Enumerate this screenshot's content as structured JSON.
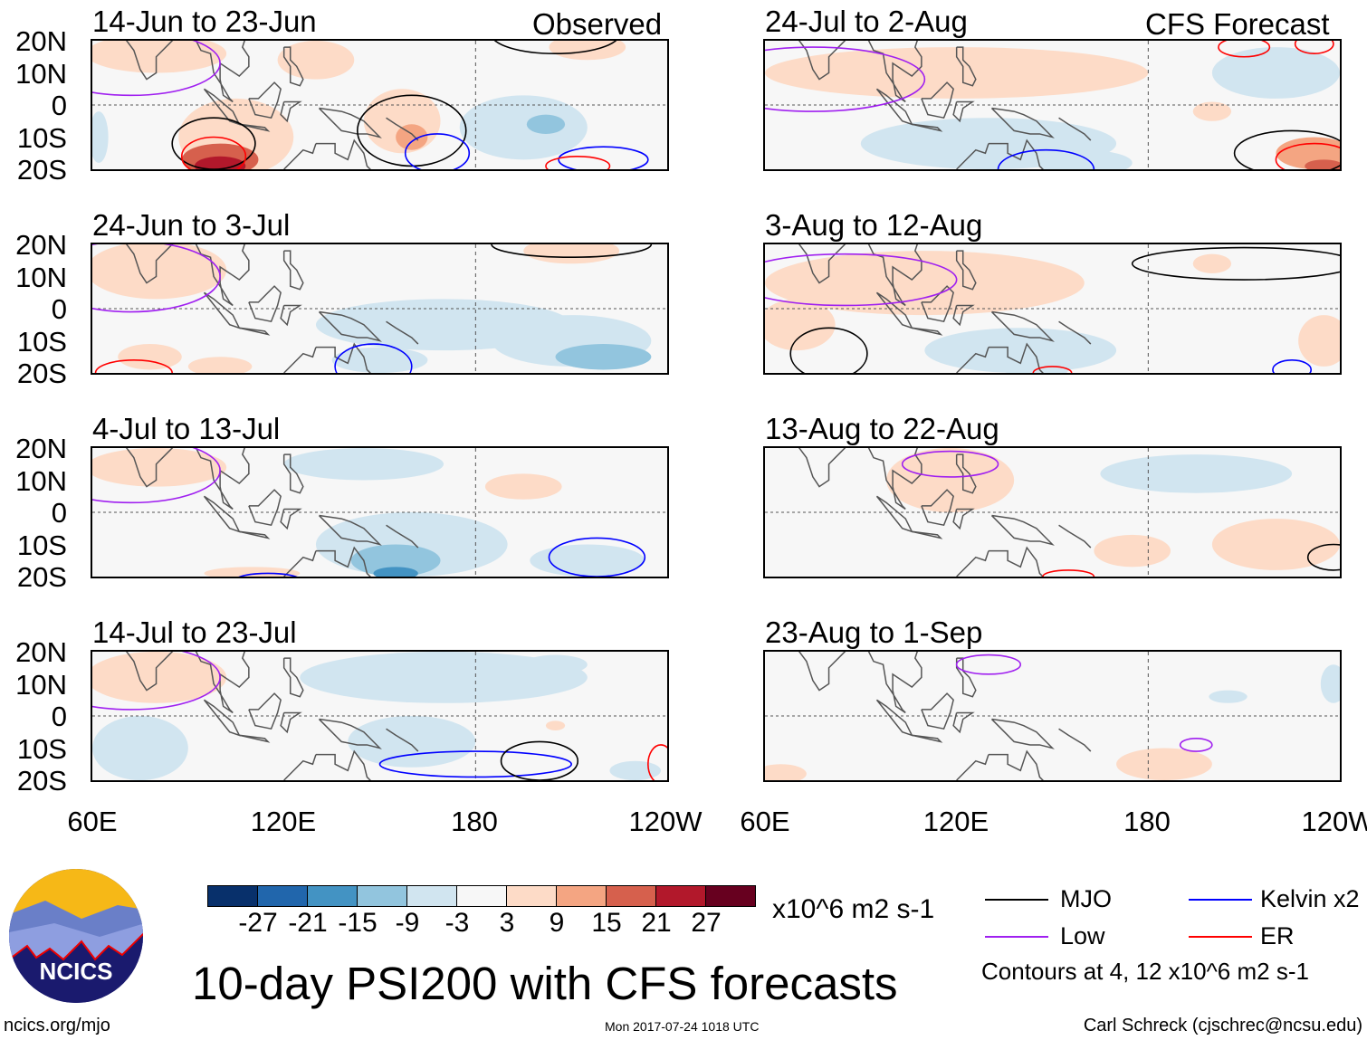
{
  "left_label": "Observed",
  "right_label": "CFS Forecast",
  "lat_labels": [
    "20N",
    "10N",
    "0",
    "10S",
    "20S"
  ],
  "lon_labels": [
    "60E",
    "120E",
    "180",
    "120W"
  ],
  "title": "10-day PSI200 with CFS forecasts",
  "units": "x10^6 m2 s-1",
  "website": "ncics.org/mjo",
  "timestamp": "Mon 2017-07-24 1018 UTC",
  "author": "Carl Schreck (cjschrec@ncsu.edu)",
  "logo_text": "NCICS",
  "contour_note": "Contours at 4, 12 x10^6 m2 s-1",
  "colorbar": {
    "ticks": [
      "-27",
      "-21",
      "-15",
      "-9",
      "-3",
      "3",
      "9",
      "15",
      "21",
      "27"
    ],
    "colors": [
      "#08306b",
      "#2166ac",
      "#4393c3",
      "#92c5de",
      "#d1e5f0",
      "#f7f7f7",
      "#fddbc7",
      "#f4a582",
      "#d6604d",
      "#b2182b",
      "#67001f"
    ]
  },
  "legend": [
    {
      "label": "MJO",
      "color": "#000000"
    },
    {
      "label": "Kelvin x2",
      "color": "#0000ff"
    },
    {
      "label": "Low",
      "color": "#a020f0"
    },
    {
      "label": "ER",
      "color": "#ff0000"
    }
  ],
  "chart_data": {
    "type": "heatmap",
    "variable": "PSI200 anomaly",
    "lon_range": [
      60,
      240
    ],
    "lat_range": [
      -20,
      20
    ],
    "panels": [
      {
        "title": "14-Jun to 23-Jun",
        "blobs": [
          [
            80,
            16,
            22,
            6,
            5
          ],
          [
            130,
            14,
            12,
            6,
            5
          ],
          [
            215,
            18,
            12,
            4,
            5
          ],
          [
            105,
            -10,
            18,
            12,
            8
          ],
          [
            100,
            -17,
            12,
            5,
            16
          ],
          [
            100,
            -19,
            8,
            3,
            22
          ],
          [
            157,
            -5,
            12,
            10,
            6
          ],
          [
            160,
            -10,
            5,
            4,
            10
          ],
          [
            195,
            -7,
            20,
            10,
            -5
          ],
          [
            202,
            -6,
            6,
            3,
            -10
          ],
          [
            62,
            -10,
            3,
            8,
            -4
          ]
        ],
        "contours": [
          [
            98,
            -12,
            13,
            8,
            "MJO"
          ],
          [
            160,
            -8,
            17,
            11,
            "MJO"
          ],
          [
            205,
            22,
            20,
            6,
            "MJO"
          ],
          [
            98,
            -16,
            10,
            6,
            "ER"
          ],
          [
            168,
            -15,
            10,
            6,
            "Kelvin x2"
          ],
          [
            220,
            -17,
            14,
            4,
            "Kelvin x2"
          ],
          [
            212,
            -19,
            10,
            3,
            "ER"
          ],
          [
            72,
            13,
            28,
            10,
            "Low"
          ]
        ]
      },
      {
        "title": "24-Jun to 3-Jul",
        "blobs": [
          [
            80,
            12,
            22,
            9,
            5
          ],
          [
            210,
            18,
            15,
            4,
            5
          ],
          [
            170,
            -5,
            40,
            8,
            -5
          ],
          [
            210,
            -10,
            25,
            8,
            -6
          ],
          [
            220,
            -15,
            15,
            4,
            -10
          ],
          [
            150,
            -16,
            15,
            4,
            -9
          ],
          [
            100,
            -18,
            10,
            3,
            4
          ],
          [
            78,
            -15,
            10,
            4,
            4
          ]
        ],
        "contours": [
          [
            210,
            20,
            25,
            4,
            "MJO"
          ],
          [
            73,
            -20,
            12,
            4,
            "ER"
          ],
          [
            148,
            -18,
            12,
            7,
            "Kelvin x2"
          ],
          [
            72,
            10,
            28,
            11,
            "Low"
          ]
        ]
      },
      {
        "title": "4-Jul to 13-Jul",
        "blobs": [
          [
            80,
            14,
            22,
            6,
            5
          ],
          [
            195,
            8,
            12,
            4,
            4
          ],
          [
            145,
            15,
            25,
            5,
            -4
          ],
          [
            160,
            -10,
            30,
            10,
            -6
          ],
          [
            155,
            -15,
            14,
            5,
            -12
          ],
          [
            155,
            -19,
            7,
            2,
            -18
          ],
          [
            215,
            -15,
            18,
            5,
            -5
          ],
          [
            110,
            -19,
            15,
            2,
            4
          ]
        ],
        "contours": [
          [
            218,
            -14,
            15,
            6,
            "Kelvin x2"
          ],
          [
            72,
            13,
            28,
            10,
            "Low"
          ],
          [
            115,
            -21,
            10,
            2,
            "Kelvin x2"
          ]
        ]
      },
      {
        "title": "14-Jul to 23-Jul",
        "blobs": [
          [
            80,
            12,
            22,
            8,
            5
          ],
          [
            170,
            12,
            45,
            8,
            -5
          ],
          [
            205,
            16,
            10,
            3,
            -8
          ],
          [
            75,
            -10,
            15,
            10,
            -4
          ],
          [
            160,
            -8,
            20,
            8,
            -5
          ],
          [
            230,
            -17,
            8,
            3,
            -9
          ],
          [
            205,
            -3,
            3,
            1.5,
            5
          ]
        ],
        "contours": [
          [
            180,
            -15,
            30,
            4,
            "Kelvin x2"
          ],
          [
            200,
            -14,
            12,
            6,
            "MJO"
          ],
          [
            238,
            -15,
            4,
            6,
            "ER"
          ],
          [
            72,
            12,
            28,
            10,
            "Low"
          ]
        ]
      },
      {
        "title": "24-Jul to 2-Aug",
        "blobs": [
          [
            120,
            10,
            60,
            8,
            5
          ],
          [
            200,
            -2,
            6,
            3,
            5
          ],
          [
            130,
            -12,
            40,
            8,
            -5
          ],
          [
            160,
            -18,
            15,
            4,
            -7
          ],
          [
            220,
            10,
            20,
            8,
            -4
          ],
          [
            232,
            -15,
            12,
            5,
            9
          ],
          [
            235,
            -19,
            6,
            2,
            15
          ]
        ],
        "contours": [
          [
            225,
            -15,
            18,
            7,
            "MJO"
          ],
          [
            232,
            -17,
            12,
            5,
            "ER"
          ],
          [
            148,
            -20,
            15,
            6,
            "Kelvin x2"
          ],
          [
            210,
            18,
            8,
            3,
            "ER"
          ],
          [
            232,
            19,
            6,
            3,
            "ER"
          ],
          [
            75,
            8,
            35,
            10,
            "Low"
          ]
        ]
      },
      {
        "title": "3-Aug to 12-Aug",
        "blobs": [
          [
            110,
            8,
            50,
            10,
            5
          ],
          [
            200,
            14,
            6,
            3,
            4
          ],
          [
            140,
            -13,
            30,
            7,
            -5
          ],
          [
            145,
            -19,
            10,
            3,
            -8
          ],
          [
            70,
            -5,
            12,
            8,
            5
          ],
          [
            235,
            -10,
            8,
            8,
            4
          ]
        ],
        "contours": [
          [
            210,
            14,
            35,
            5,
            "MJO"
          ],
          [
            80,
            -14,
            12,
            8,
            "MJO"
          ],
          [
            225,
            -19,
            6,
            3,
            "Kelvin x2"
          ],
          [
            150,
            -20,
            6,
            2,
            "ER"
          ],
          [
            85,
            9,
            35,
            8,
            "Low"
          ]
        ]
      },
      {
        "title": "13-Aug to 22-Aug",
        "blobs": [
          [
            118,
            10,
            20,
            10,
            5
          ],
          [
            195,
            12,
            30,
            6,
            -4
          ],
          [
            220,
            -10,
            20,
            8,
            4
          ],
          [
            175,
            -12,
            12,
            5,
            4
          ]
        ],
        "contours": [
          [
            238,
            -14,
            8,
            4,
            "MJO"
          ],
          [
            118,
            15,
            15,
            4,
            "Low"
          ],
          [
            155,
            -20,
            8,
            2,
            "ER"
          ]
        ]
      },
      {
        "title": "23-Aug to 1-Sep",
        "blobs": [
          [
            205,
            6,
            6,
            2,
            -4
          ],
          [
            238,
            10,
            4,
            6,
            -4
          ],
          [
            185,
            -15,
            15,
            5,
            4
          ],
          [
            65,
            -18,
            8,
            3,
            4
          ]
        ],
        "contours": [
          [
            195,
            -9,
            5,
            2,
            "Low"
          ],
          [
            130,
            16,
            10,
            3,
            "Low"
          ]
        ]
      }
    ]
  }
}
